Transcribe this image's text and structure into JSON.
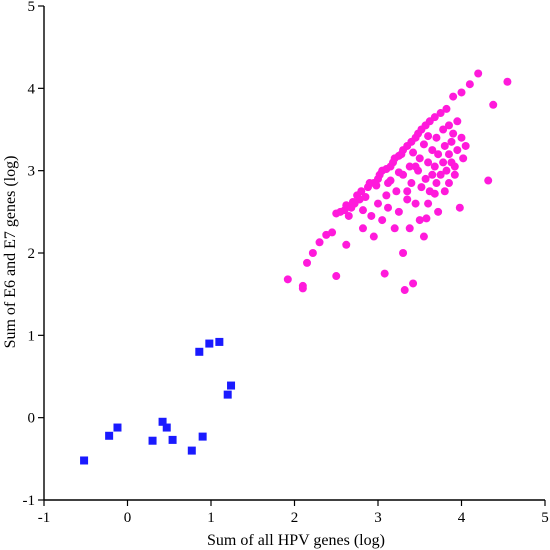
{
  "chart_data": {
    "type": "scatter",
    "title": "",
    "xlabel": "Sum of all HPV genes (log)",
    "ylabel": "Sum of  E6 and E7 genes (log)",
    "xlim": [
      -1,
      5
    ],
    "ylim": [
      -1,
      5
    ],
    "xticks": [
      "-1",
      "0",
      "1",
      "2",
      "3",
      "4",
      "5"
    ],
    "yticks": [
      "-1",
      "0",
      "1",
      "2",
      "3",
      "4",
      "5"
    ],
    "grid": false,
    "series": [
      {
        "marker": "square",
        "color": "#1a1aff",
        "points": [
          [
            -0.52,
            -0.52
          ],
          [
            -0.22,
            -0.22
          ],
          [
            -0.12,
            -0.12
          ],
          [
            0.3,
            -0.28
          ],
          [
            0.42,
            -0.05
          ],
          [
            0.47,
            -0.12
          ],
          [
            0.54,
            -0.27
          ],
          [
            0.77,
            -0.4
          ],
          [
            0.86,
            0.8
          ],
          [
            0.9,
            -0.23
          ],
          [
            0.98,
            0.9
          ],
          [
            1.1,
            0.92
          ],
          [
            1.2,
            0.28
          ],
          [
            1.24,
            0.39
          ]
        ]
      },
      {
        "marker": "circle",
        "color": "#ff1adb",
        "points": [
          [
            1.92,
            1.68
          ],
          [
            2.1,
            1.6
          ],
          [
            2.1,
            1.57
          ],
          [
            2.15,
            1.88
          ],
          [
            2.22,
            2.0
          ],
          [
            2.3,
            2.13
          ],
          [
            2.38,
            2.22
          ],
          [
            2.5,
            1.72
          ],
          [
            2.5,
            2.48
          ],
          [
            2.55,
            2.5
          ],
          [
            2.6,
            2.52
          ],
          [
            2.62,
            2.58
          ],
          [
            2.65,
            2.45
          ],
          [
            2.68,
            2.55
          ],
          [
            2.7,
            2.62
          ],
          [
            2.72,
            2.6
          ],
          [
            2.75,
            2.7
          ],
          [
            2.78,
            2.65
          ],
          [
            2.8,
            2.75
          ],
          [
            2.82,
            2.52
          ],
          [
            2.85,
            2.68
          ],
          [
            2.88,
            2.8
          ],
          [
            2.9,
            2.85
          ],
          [
            2.92,
            2.45
          ],
          [
            2.95,
            2.2
          ],
          [
            2.95,
            2.85
          ],
          [
            2.98,
            2.82
          ],
          [
            3.0,
            2.9
          ],
          [
            3.0,
            2.6
          ],
          [
            3.02,
            2.95
          ],
          [
            3.05,
            3.0
          ],
          [
            3.05,
            2.4
          ],
          [
            3.08,
            1.75
          ],
          [
            3.1,
            3.02
          ],
          [
            3.1,
            2.7
          ],
          [
            3.12,
            2.55
          ],
          [
            3.15,
            3.05
          ],
          [
            3.15,
            2.88
          ],
          [
            3.18,
            3.1
          ],
          [
            3.2,
            2.3
          ],
          [
            3.2,
            3.15
          ],
          [
            3.22,
            2.75
          ],
          [
            3.25,
            3.18
          ],
          [
            3.25,
            2.5
          ],
          [
            3.28,
            3.2
          ],
          [
            3.3,
            3.25
          ],
          [
            3.3,
            2.95
          ],
          [
            3.3,
            2.0
          ],
          [
            3.32,
            1.55
          ],
          [
            3.35,
            3.3
          ],
          [
            3.35,
            2.65
          ],
          [
            3.38,
            3.05
          ],
          [
            3.4,
            3.35
          ],
          [
            3.4,
            2.85
          ],
          [
            3.42,
            1.63
          ],
          [
            3.42,
            3.22
          ],
          [
            3.45,
            3.4
          ],
          [
            3.45,
            2.6
          ],
          [
            3.48,
            3.0
          ],
          [
            3.48,
            3.45
          ],
          [
            3.5,
            3.15
          ],
          [
            3.5,
            2.4
          ],
          [
            3.52,
            3.5
          ],
          [
            3.52,
            2.8
          ],
          [
            3.55,
            3.32
          ],
          [
            3.55,
            2.2
          ],
          [
            3.57,
            3.55
          ],
          [
            3.57,
            2.9
          ],
          [
            3.6,
            3.1
          ],
          [
            3.6,
            3.42
          ],
          [
            3.6,
            2.6
          ],
          [
            3.62,
            2.75
          ],
          [
            3.62,
            3.6
          ],
          [
            3.65,
            3.25
          ],
          [
            3.65,
            2.95
          ],
          [
            3.68,
            3.65
          ],
          [
            3.68,
            3.05
          ],
          [
            3.7,
            2.85
          ],
          [
            3.7,
            3.4
          ],
          [
            3.72,
            3.2
          ],
          [
            3.72,
            2.5
          ],
          [
            3.75,
            3.7
          ],
          [
            3.75,
            2.95
          ],
          [
            3.78,
            3.5
          ],
          [
            3.78,
            3.1
          ],
          [
            3.8,
            3.3
          ],
          [
            3.8,
            2.75
          ],
          [
            3.82,
            3.75
          ],
          [
            3.82,
            3.0
          ],
          [
            3.85,
            3.55
          ],
          [
            3.85,
            3.2
          ],
          [
            3.85,
            2.85
          ],
          [
            3.88,
            3.35
          ],
          [
            3.88,
            3.1
          ],
          [
            3.9,
            3.9
          ],
          [
            3.9,
            3.45
          ],
          [
            3.92,
            3.05
          ],
          [
            3.92,
            2.95
          ],
          [
            3.95,
            3.25
          ],
          [
            3.95,
            3.6
          ],
          [
            3.98,
            2.55
          ],
          [
            4.0,
            3.4
          ],
          [
            4.0,
            3.95
          ],
          [
            4.02,
            3.15
          ],
          [
            4.05,
            3.3
          ],
          [
            4.1,
            4.05
          ],
          [
            4.2,
            4.18
          ],
          [
            4.32,
            2.88
          ],
          [
            4.38,
            3.8
          ],
          [
            4.55,
            4.08
          ],
          [
            2.45,
            2.25
          ],
          [
            2.62,
            2.1
          ],
          [
            2.82,
            2.3
          ],
          [
            3.38,
            2.3
          ],
          [
            3.58,
            2.42
          ],
          [
            3.12,
            2.85
          ],
          [
            3.68,
            2.72
          ],
          [
            3.45,
            3.05
          ],
          [
            3.25,
            2.98
          ],
          [
            3.35,
            2.75
          ]
        ]
      }
    ]
  }
}
